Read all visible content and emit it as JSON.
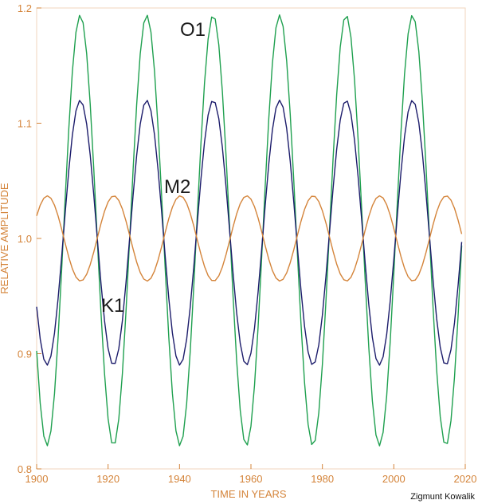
{
  "chart_data": {
    "type": "line",
    "xlabel": "TIME IN YEARS",
    "ylabel": "RELATIVE AMPLITUDE",
    "xlim": [
      1900,
      2020
    ],
    "ylim": [
      0.8,
      1.2
    ],
    "x_ticks": [
      1900,
      1920,
      1940,
      1960,
      1980,
      2000,
      2020
    ],
    "y_ticks": [
      0.8,
      0.9,
      1.0,
      1.1,
      1.2
    ],
    "x_tick_labels": [
      "1900",
      "1920",
      "1940",
      "1960",
      "1980",
      "2000",
      "2020"
    ],
    "y_tick_labels": [
      "0.8",
      "0.9",
      "1.0",
      "1.1",
      "1.2"
    ],
    "grid": false,
    "axis_color": "#d4843a",
    "series": [
      {
        "name": "O1",
        "color": "#1fa04f",
        "x_range": [
          1900,
          2019
        ],
        "mean": 1.007,
        "amplitude": 0.187,
        "period_years": 18.61,
        "peak_year": 1912.2
      },
      {
        "name": "K1",
        "color": "#1c1c6b",
        "x_range": [
          1900,
          2019
        ],
        "mean": 1.005,
        "amplitude": 0.115,
        "period_years": 18.61,
        "peak_year": 1912.2
      },
      {
        "name": "M2",
        "color": "#d4843a",
        "x_range": [
          1900,
          2019
        ],
        "mean": 1.0,
        "amplitude": 0.037,
        "period_years": 18.61,
        "peak_year": 1903.0
      }
    ]
  },
  "credit": "Zigmunt Kowalik"
}
